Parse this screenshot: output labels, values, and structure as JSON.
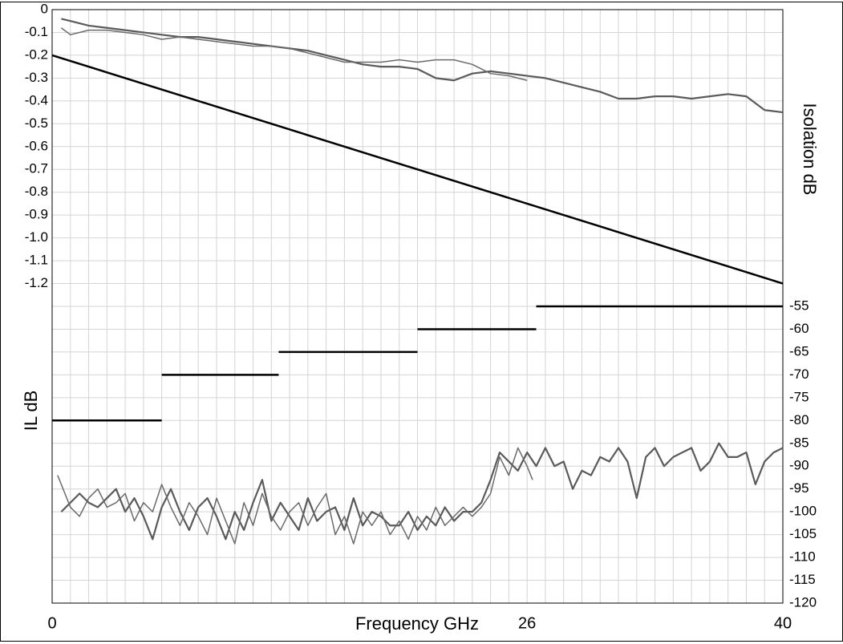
{
  "chart_data": {
    "type": "line",
    "x_label": "Frequency GHz",
    "y_label": "IL dB",
    "y2_label": "Isolation dB",
    "xlim": [
      0,
      40
    ],
    "xticks": [
      0,
      26,
      40
    ],
    "xgrid": [
      0,
      1,
      2,
      3,
      4,
      5,
      6,
      7,
      8,
      9,
      10,
      11,
      12,
      13,
      14,
      15,
      16,
      17,
      18,
      19,
      20,
      21,
      22,
      23,
      24,
      25,
      26,
      27,
      28,
      29,
      30,
      31,
      32,
      33,
      34,
      35,
      36,
      37,
      38,
      39,
      40
    ],
    "ylim": [
      -2.6,
      0
    ],
    "yticks": [
      0,
      -0.1,
      -0.2,
      -0.3,
      -0.4,
      -0.5,
      -0.6,
      -0.7,
      -0.8,
      -0.9,
      {
        "value": -1,
        "label": "-1.0"
      },
      -1.1,
      -1.2
    ],
    "y2lim": [
      -120,
      10
    ],
    "y2ticks": [
      -55,
      -60,
      -65,
      -70,
      -75,
      -80,
      -85,
      -90,
      -95,
      -100,
      -105,
      -110,
      -115,
      -120
    ],
    "grid": true,
    "series": [
      {
        "color": "#5a5a5a",
        "width": 2.2,
        "x": [
          0.5,
          1,
          2,
          3,
          4,
          5,
          6,
          7,
          8,
          9,
          10,
          11,
          12,
          13,
          14,
          15,
          16,
          17,
          18,
          19,
          20,
          21,
          22,
          23,
          24,
          25,
          26,
          27,
          28,
          29,
          30,
          31,
          32,
          33,
          34,
          35,
          36,
          37,
          38,
          39,
          40
        ],
        "values": [
          -0.04,
          -0.05,
          -0.07,
          -0.08,
          -0.09,
          -0.1,
          -0.11,
          -0.12,
          -0.12,
          -0.13,
          -0.14,
          -0.15,
          -0.16,
          -0.17,
          -0.18,
          -0.2,
          -0.22,
          -0.24,
          -0.25,
          -0.25,
          -0.26,
          -0.3,
          -0.31,
          -0.28,
          -0.27,
          -0.28,
          -0.29,
          -0.3,
          -0.32,
          -0.34,
          -0.36,
          -0.39,
          -0.39,
          -0.38,
          -0.38,
          -0.39,
          -0.38,
          -0.37,
          -0.38,
          -0.44,
          -0.45
        ]
      },
      {
        "color": "#6a6a6a",
        "width": 1.5,
        "x": [
          0.5,
          1,
          2,
          3,
          4,
          5,
          6,
          7,
          8,
          9,
          10,
          11,
          12,
          13,
          14,
          15,
          16,
          17,
          18,
          19,
          20,
          21,
          22,
          23,
          24,
          25,
          26
        ],
        "values": [
          -0.08,
          -0.11,
          -0.09,
          -0.09,
          -0.1,
          -0.11,
          -0.13,
          -0.12,
          -0.13,
          -0.14,
          -0.15,
          -0.16,
          -0.16,
          -0.17,
          -0.19,
          -0.21,
          -0.23,
          -0.23,
          -0.23,
          -0.22,
          -0.23,
          -0.22,
          -0.22,
          -0.24,
          -0.28,
          -0.29,
          -0.31
        ]
      },
      {
        "color": "#000000",
        "width": 2.5,
        "x": [
          0,
          40
        ],
        "values": [
          -0.2,
          -1.2
        ]
      },
      {
        "color": "#000000",
        "width": 2.5,
        "axis": "y2",
        "x": [
          0,
          6
        ],
        "values": [
          -80,
          -80
        ]
      },
      {
        "color": "#000000",
        "width": 2.5,
        "axis": "y2",
        "x": [
          6,
          12.4
        ],
        "values": [
          -70,
          -70
        ]
      },
      {
        "color": "#000000",
        "width": 2.5,
        "axis": "y2",
        "x": [
          12.4,
          20
        ],
        "values": [
          -65,
          -65
        ]
      },
      {
        "color": "#000000",
        "width": 2.5,
        "axis": "y2",
        "x": [
          20,
          26.5
        ],
        "values": [
          -60,
          -60
        ]
      },
      {
        "color": "#000000",
        "width": 2.5,
        "axis": "y2",
        "x": [
          26.5,
          40
        ],
        "values": [
          -55,
          -55
        ]
      },
      {
        "color": "#5a5a5a",
        "width": 2.2,
        "axis": "y2",
        "x": [
          0.5,
          1,
          1.5,
          2,
          2.5,
          3,
          3.5,
          4,
          4.5,
          5,
          5.5,
          6,
          6.5,
          7,
          7.5,
          8,
          8.5,
          9,
          9.5,
          10,
          10.5,
          11,
          11.5,
          12,
          12.5,
          13,
          13.5,
          14,
          14.5,
          15,
          15.5,
          16,
          16.5,
          17,
          17.5,
          18,
          18.5,
          19,
          19.5,
          20,
          20.5,
          21,
          21.5,
          22,
          22.5,
          23,
          23.5,
          24,
          24.5,
          25,
          25.5,
          26,
          26.5,
          27,
          27.5,
          28,
          28.5,
          29,
          29.5,
          30,
          30.5,
          31,
          31.5,
          32,
          32.5,
          33,
          33.5,
          34,
          34.5,
          35,
          35.5,
          36,
          36.5,
          37,
          37.5,
          38,
          38.5,
          39,
          39.5,
          40
        ],
        "values": [
          -100,
          -98,
          -96,
          -98,
          -99,
          -97,
          -95,
          -100,
          -97,
          -101,
          -106,
          -99,
          -95,
          -100,
          -104,
          -99,
          -97,
          -101,
          -106,
          -100,
          -104,
          -98,
          -93,
          -102,
          -98,
          -101,
          -104,
          -97,
          -102,
          -100,
          -99,
          -104,
          -97,
          -103,
          -100,
          -101,
          -103,
          -103,
          -100,
          -104,
          -101,
          -103,
          -99,
          -102,
          -100,
          -100,
          -98,
          -93,
          -87,
          -89,
          -91,
          -87,
          -90,
          -86,
          -90,
          -89,
          -95,
          -91,
          -92,
          -88,
          -89,
          -86,
          -89,
          -97,
          -88,
          -86,
          -90,
          -88,
          -87,
          -86,
          -91,
          -89,
          -85,
          -88,
          -88,
          -87,
          -94,
          -89,
          -87,
          -86
        ]
      },
      {
        "color": "#6a6a6a",
        "width": 1.5,
        "axis": "y2",
        "x": [
          0.3,
          0.7,
          1,
          1.5,
          2,
          2.5,
          3,
          3.5,
          4,
          4.5,
          5,
          5.5,
          6,
          6.5,
          7,
          7.5,
          8,
          8.5,
          9,
          9.5,
          10,
          10.5,
          11,
          11.5,
          12,
          12.5,
          13,
          13.5,
          14,
          14.5,
          15,
          15.5,
          16,
          16.5,
          17,
          17.5,
          18,
          18.5,
          19,
          19.5,
          20,
          20.5,
          21,
          21.5,
          22,
          22.5,
          23,
          23.5,
          24,
          24.5,
          25,
          25.5,
          26,
          26.3
        ],
        "values": [
          -92,
          -96,
          -99,
          -101,
          -97,
          -95,
          -99,
          -98,
          -96,
          -102,
          -98,
          -100,
          -94,
          -99,
          -103,
          -98,
          -101,
          -105,
          -97,
          -102,
          -107,
          -98,
          -103,
          -96,
          -101,
          -104,
          -100,
          -98,
          -103,
          -99,
          -96,
          -105,
          -101,
          -107,
          -100,
          -103,
          -100,
          -105,
          -102,
          -106,
          -101,
          -104,
          -99,
          -103,
          -101,
          -99,
          -101,
          -99,
          -96,
          -88,
          -92,
          -86,
          -90,
          -93
        ]
      }
    ]
  }
}
